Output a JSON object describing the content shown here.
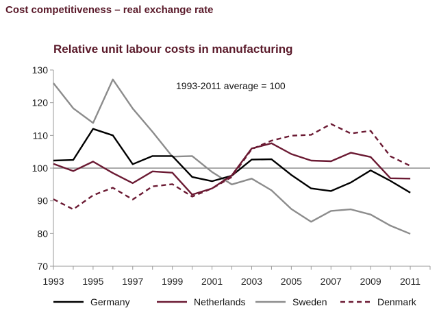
{
  "header": {
    "title": "Cost competitiveness – real exchange rate"
  },
  "chart_data": {
    "type": "line",
    "title": "Relative unit labour costs in manufacturing",
    "annotation": "1993-2011 average = 100",
    "xlabel": "",
    "ylabel": "",
    "x": [
      1993,
      1994,
      1995,
      1996,
      1997,
      1998,
      1999,
      2000,
      2001,
      2002,
      2003,
      2004,
      2005,
      2006,
      2007,
      2008,
      2009,
      2010,
      2011
    ],
    "xlim": [
      1993,
      2012
    ],
    "ylim": [
      70,
      130
    ],
    "x_ticks": [
      "1993",
      "1995",
      "1997",
      "1999",
      "2001",
      "2003",
      "2005",
      "2007",
      "2009",
      "2011"
    ],
    "y_ticks": [
      "70",
      "80",
      "90",
      "100",
      "110",
      "120",
      "130"
    ],
    "reference_line": 100,
    "legend_position": "bottom",
    "series": [
      {
        "name": "Germany",
        "color": "#000000",
        "dash": "solid",
        "values": [
          102.3,
          102.5,
          112.0,
          110.0,
          101.2,
          103.7,
          103.7,
          97.3,
          96.0,
          97.7,
          102.6,
          102.7,
          97.9,
          93.8,
          93.0,
          95.6,
          99.3,
          96.1,
          92.5
        ]
      },
      {
        "name": "Netherlands",
        "color": "#6b1a33",
        "dash": "solid",
        "values": [
          101.3,
          99.1,
          102.0,
          98.5,
          95.4,
          99.0,
          98.6,
          91.9,
          93.8,
          97.8,
          106.0,
          107.6,
          104.3,
          102.3,
          102.1,
          104.7,
          103.4,
          96.9,
          96.8
        ]
      },
      {
        "name": "Sweden",
        "color": "#8c8c8c",
        "dash": "solid",
        "values": [
          126.0,
          118.3,
          113.8,
          127.1,
          118.2,
          111.1,
          103.5,
          103.7,
          98.8,
          95.0,
          96.8,
          93.2,
          87.5,
          83.6,
          86.9,
          87.4,
          85.8,
          82.4,
          79.9
        ]
      },
      {
        "name": "Denmark",
        "color": "#6b1a33",
        "dash": "dashed",
        "values": [
          90.5,
          87.4,
          91.7,
          94.0,
          90.4,
          94.4,
          95.1,
          91.3,
          93.8,
          97.3,
          105.8,
          108.4,
          109.9,
          110.2,
          113.5,
          110.6,
          111.4,
          103.6,
          100.7
        ]
      }
    ]
  }
}
